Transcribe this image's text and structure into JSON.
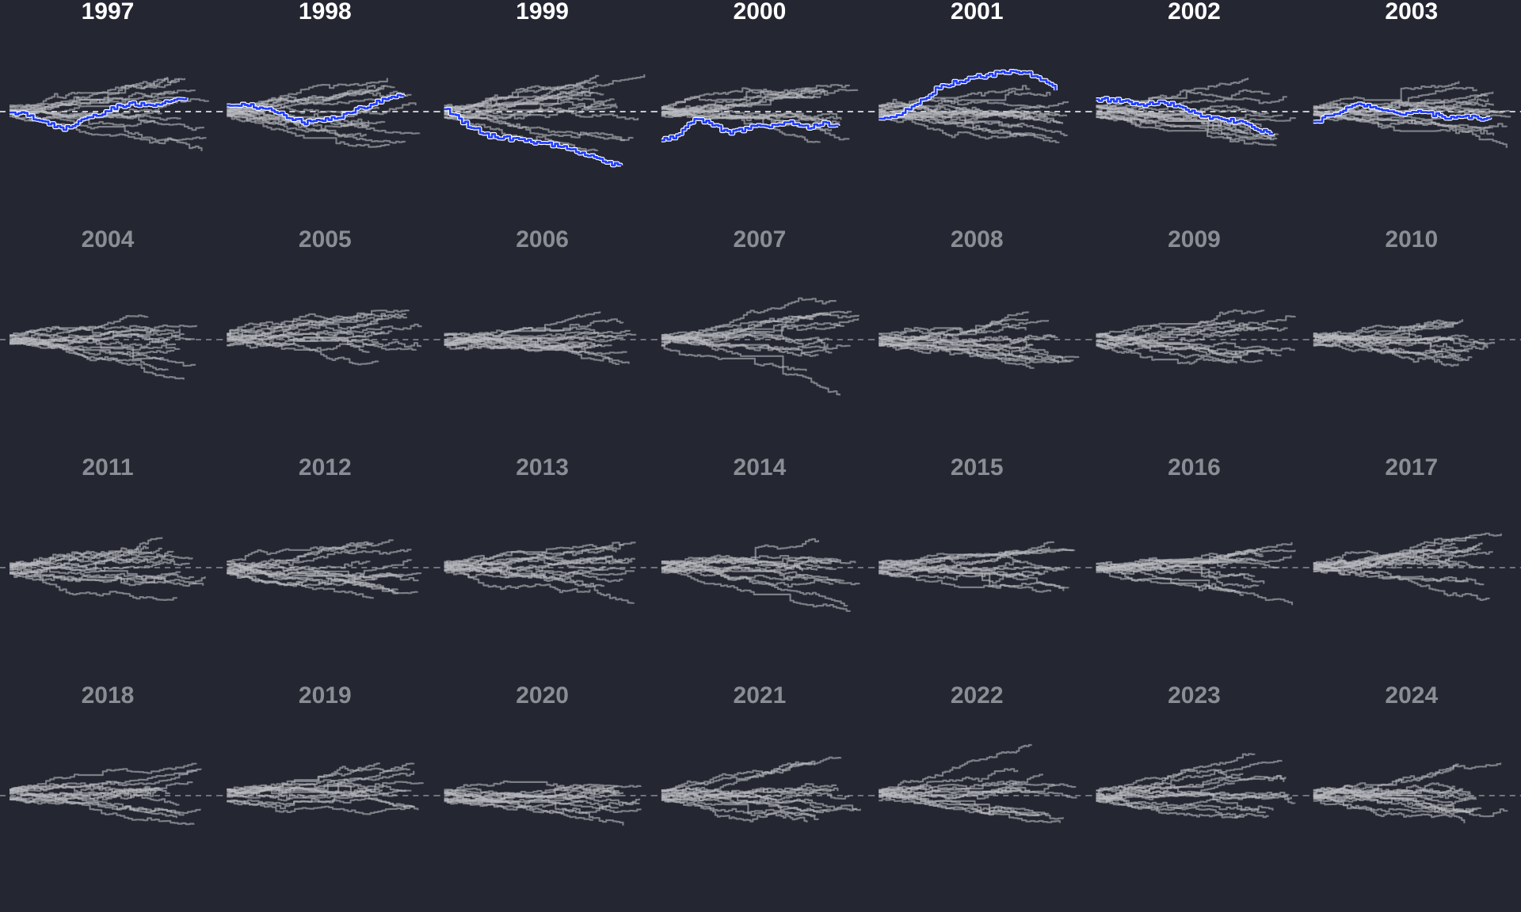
{
  "chart_data": {
    "type": "line",
    "layout": "small-multiples",
    "panels": [
      {
        "label": "1997",
        "highlighted": true,
        "seed": 11,
        "n": 14,
        "highlight_path": [
          0,
          -4,
          -14,
          -22,
          -12,
          -4,
          6,
          10,
          8,
          14,
          16
        ]
      },
      {
        "label": "1998",
        "highlighted": true,
        "seed": 23,
        "n": 15,
        "highlight_path": [
          6,
          8,
          4,
          -6,
          -14,
          -10,
          -4,
          6,
          16,
          22
        ]
      },
      {
        "label": "1999",
        "highlighted": true,
        "seed": 37,
        "n": 15,
        "highlight_path": [
          4,
          -16,
          -30,
          -34,
          -38,
          -42,
          -50,
          -60,
          -70
        ]
      },
      {
        "label": "2000",
        "highlighted": true,
        "seed": 41,
        "n": 15,
        "highlight_path": [
          -36,
          -30,
          -10,
          -14,
          -26,
          -24,
          -16,
          -18,
          -12,
          -20,
          -14,
          -18
        ]
      },
      {
        "label": "2001",
        "highlighted": true,
        "seed": 53,
        "n": 16,
        "highlight_path": [
          -8,
          -4,
          10,
          30,
          38,
          44,
          48,
          50,
          46,
          28
        ]
      },
      {
        "label": "2002",
        "highlighted": true,
        "seed": 61,
        "n": 15,
        "highlight_path": [
          16,
          14,
          8,
          12,
          4,
          -8,
          -10,
          -18,
          -30
        ]
      },
      {
        "label": "2003",
        "highlighted": true,
        "seed": 73,
        "n": 14,
        "highlight_path": [
          -14,
          -2,
          10,
          2,
          -4,
          0,
          -8,
          -6,
          -10
        ]
      },
      {
        "label": "2004",
        "highlighted": false,
        "seed": 83,
        "n": 14
      },
      {
        "label": "2005",
        "highlighted": false,
        "seed": 97,
        "n": 14
      },
      {
        "label": "2006",
        "highlighted": false,
        "seed": 101,
        "n": 15
      },
      {
        "label": "2007",
        "highlighted": false,
        "seed": 113,
        "n": 14
      },
      {
        "label": "2008",
        "highlighted": false,
        "seed": 127,
        "n": 15
      },
      {
        "label": "2009",
        "highlighted": false,
        "seed": 131,
        "n": 14
      },
      {
        "label": "2010",
        "highlighted": false,
        "seed": 139,
        "n": 14
      },
      {
        "label": "2011",
        "highlighted": false,
        "seed": 149,
        "n": 14
      },
      {
        "label": "2012",
        "highlighted": false,
        "seed": 157,
        "n": 15
      },
      {
        "label": "2013",
        "highlighted": false,
        "seed": 163,
        "n": 14
      },
      {
        "label": "2014",
        "highlighted": false,
        "seed": 173,
        "n": 14
      },
      {
        "label": "2015",
        "highlighted": false,
        "seed": 181,
        "n": 14
      },
      {
        "label": "2016",
        "highlighted": false,
        "seed": 191,
        "n": 15
      },
      {
        "label": "2017",
        "highlighted": false,
        "seed": 199,
        "n": 14
      },
      {
        "label": "2018",
        "highlighted": false,
        "seed": 211,
        "n": 14
      },
      {
        "label": "2019",
        "highlighted": false,
        "seed": 223,
        "n": 14
      },
      {
        "label": "2020",
        "highlighted": false,
        "seed": 229,
        "n": 14
      },
      {
        "label": "2021",
        "highlighted": false,
        "seed": 233,
        "n": 15
      },
      {
        "label": "2022",
        "highlighted": false,
        "seed": 241,
        "n": 14
      },
      {
        "label": "2023",
        "highlighted": false,
        "seed": 251,
        "n": 14
      },
      {
        "label": "2024",
        "highlighted": false,
        "seed": 263,
        "n": 15
      }
    ],
    "columns": 7,
    "rows": 4,
    "reference_line": "dashed",
    "colors": {
      "background": "#242631",
      "highlight": "#1f3cff",
      "highlight_outline": "#ffffff",
      "title_highlighted": "#ffffff",
      "title_muted": "#8b8d94",
      "line_muted": "#b9bac0",
      "reference_highlighted": "#ffffff",
      "reference_muted": "#8b8d94"
    }
  }
}
